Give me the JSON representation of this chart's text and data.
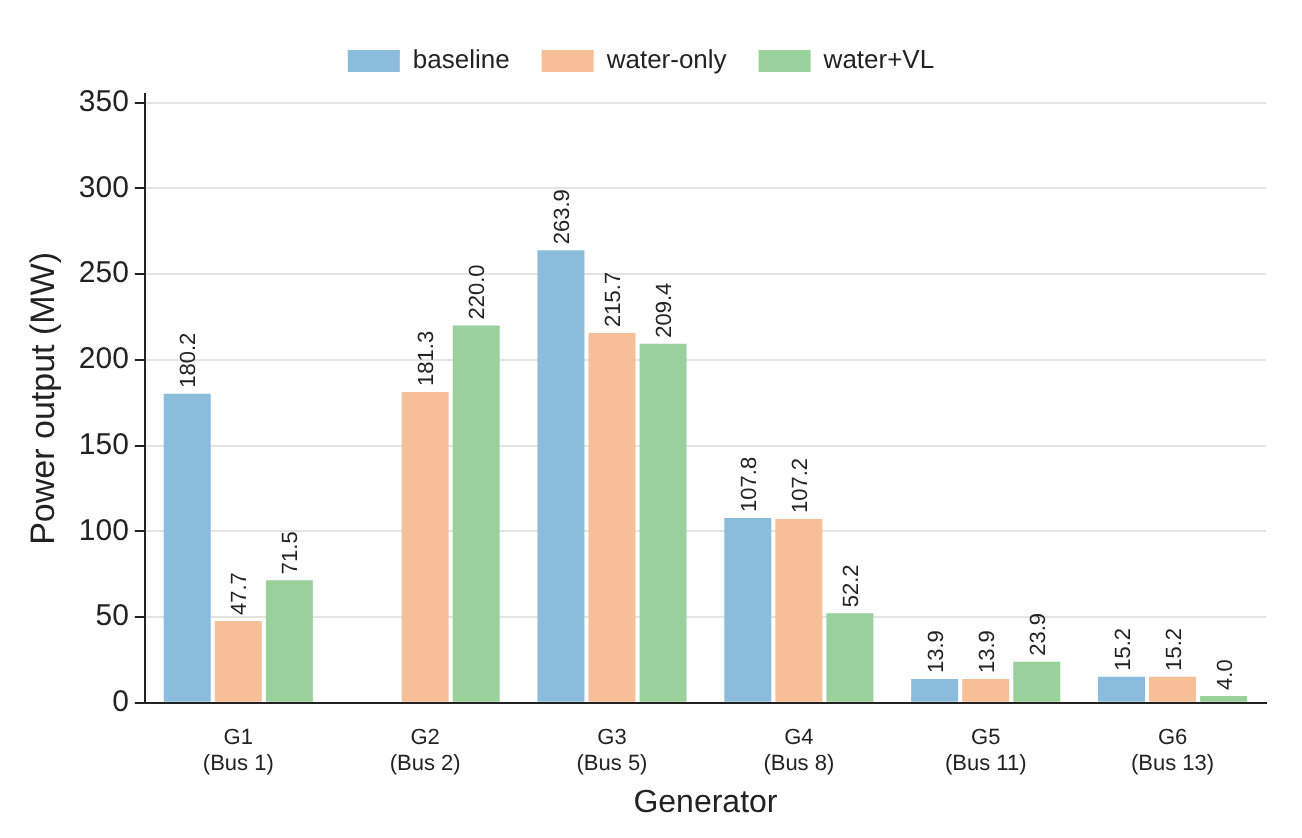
{
  "chart_data": {
    "type": "bar",
    "xlabel": "Generator",
    "ylabel": "Power output (MW)",
    "categories": [
      "G1\n(Bus 1)",
      "G2\n(Bus 2)",
      "G3\n(Bus 5)",
      "G4\n(Bus 8)",
      "G5\n(Bus 11)",
      "G6\n(Bus 13)"
    ],
    "series": [
      {
        "name": "baseline",
        "color": "#8bbcdc",
        "values": [
          180.2,
          null,
          263.9,
          107.8,
          13.9,
          15.2
        ],
        "value_labels": [
          "180.2",
          null,
          "263.9",
          "107.8",
          "13.9",
          "15.2"
        ]
      },
      {
        "name": "water-only",
        "color": "#f7bf98",
        "values": [
          47.7,
          181.3,
          215.7,
          107.2,
          13.9,
          15.2
        ],
        "value_labels": [
          "47.7",
          "181.3",
          "215.7",
          "107.2",
          "13.9",
          "15.2"
        ]
      },
      {
        "name": "water+VL",
        "color": "#9ad09c",
        "values": [
          71.5,
          220,
          209.4,
          52.2,
          23.9,
          4
        ],
        "value_labels": [
          "71.5",
          "220.0",
          "209.4",
          "52.2",
          "23.9",
          "4.0"
        ]
      }
    ],
    "ylim": [
      0,
      355
    ],
    "yticks": [
      0,
      50,
      100,
      150,
      200,
      250,
      300,
      350
    ],
    "grid": "y",
    "legend": "top"
  }
}
